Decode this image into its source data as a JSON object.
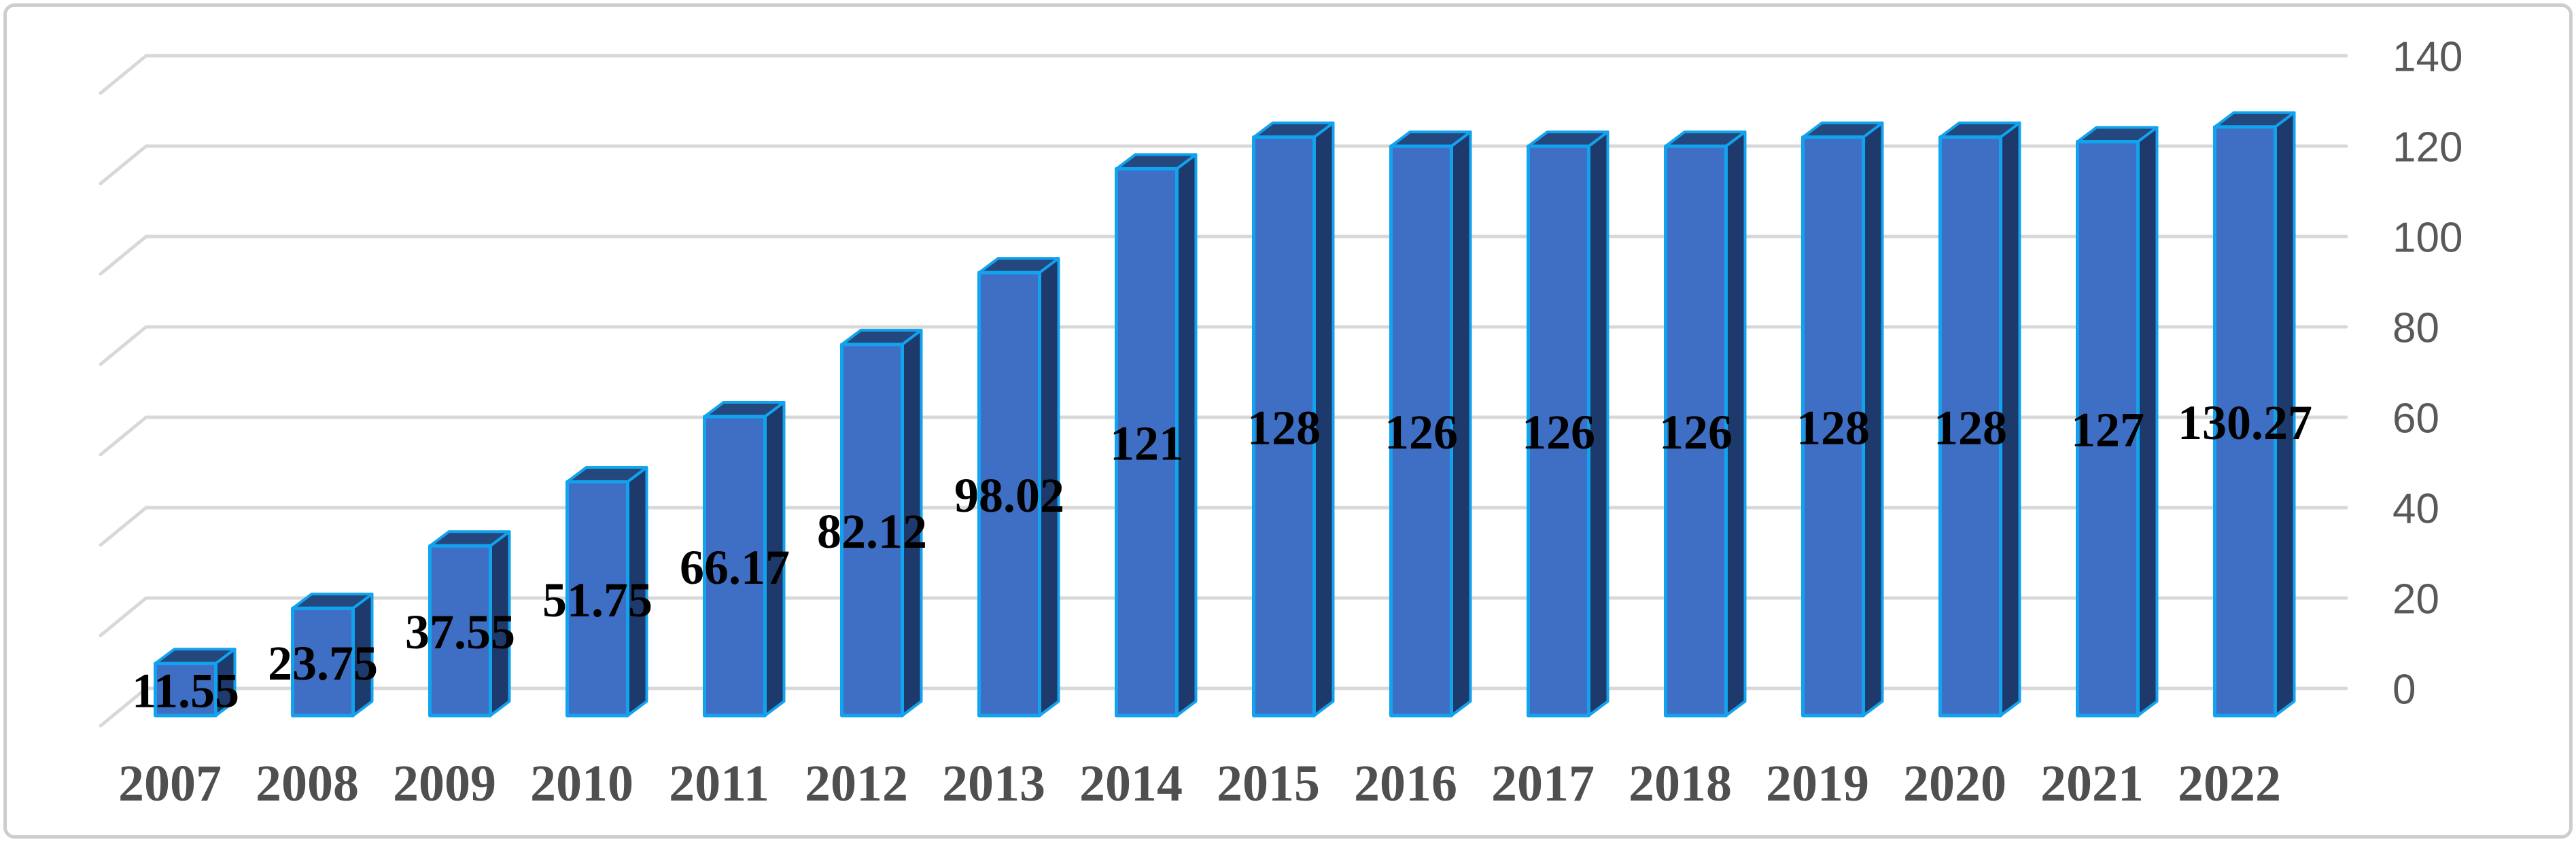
{
  "chart_data": {
    "type": "bar",
    "variant": "3d-clustered-column",
    "title": "",
    "xlabel": "",
    "ylabel": "",
    "categories": [
      "2007",
      "2008",
      "2009",
      "2010",
      "2011",
      "2012",
      "2013",
      "2014",
      "2015",
      "2016",
      "2017",
      "2018",
      "2019",
      "2020",
      "2021",
      "2022"
    ],
    "series": [
      {
        "name": "value",
        "values": [
          11.55,
          23.75,
          37.55,
          51.75,
          66.17,
          82.12,
          98.02,
          121,
          128,
          126,
          126,
          126,
          128,
          128,
          127,
          130.27
        ],
        "data_labels": [
          "11.55",
          "23.75",
          "37.55",
          "51.75",
          "66.17",
          "82.12",
          "98.02",
          "121",
          "128",
          "126",
          "126",
          "126",
          "128",
          "128",
          "127",
          "130.27"
        ]
      }
    ],
    "data_label_position": "center",
    "grid": true,
    "legend": "none",
    "y_axis": {
      "position": "right",
      "min": 0,
      "max": 140,
      "step": 20,
      "ticks": [
        0,
        20,
        40,
        60,
        80,
        100,
        120,
        140
      ],
      "tick_labels": [
        "0",
        "20",
        "40",
        "60",
        "80",
        "100",
        "120",
        "140"
      ]
    },
    "colors": {
      "background": "#FFFFFF",
      "frame_border": "#CDCDCD",
      "gridline": "#D8D8D8",
      "bar_front": "#3E6FC4",
      "bar_top": "#24477D",
      "bar_side": "#1E3A6C",
      "bar_outline": "#12A3EE",
      "data_label": "#000000",
      "category_label": "#4F4F4F",
      "tick_label": "#595959"
    }
  }
}
